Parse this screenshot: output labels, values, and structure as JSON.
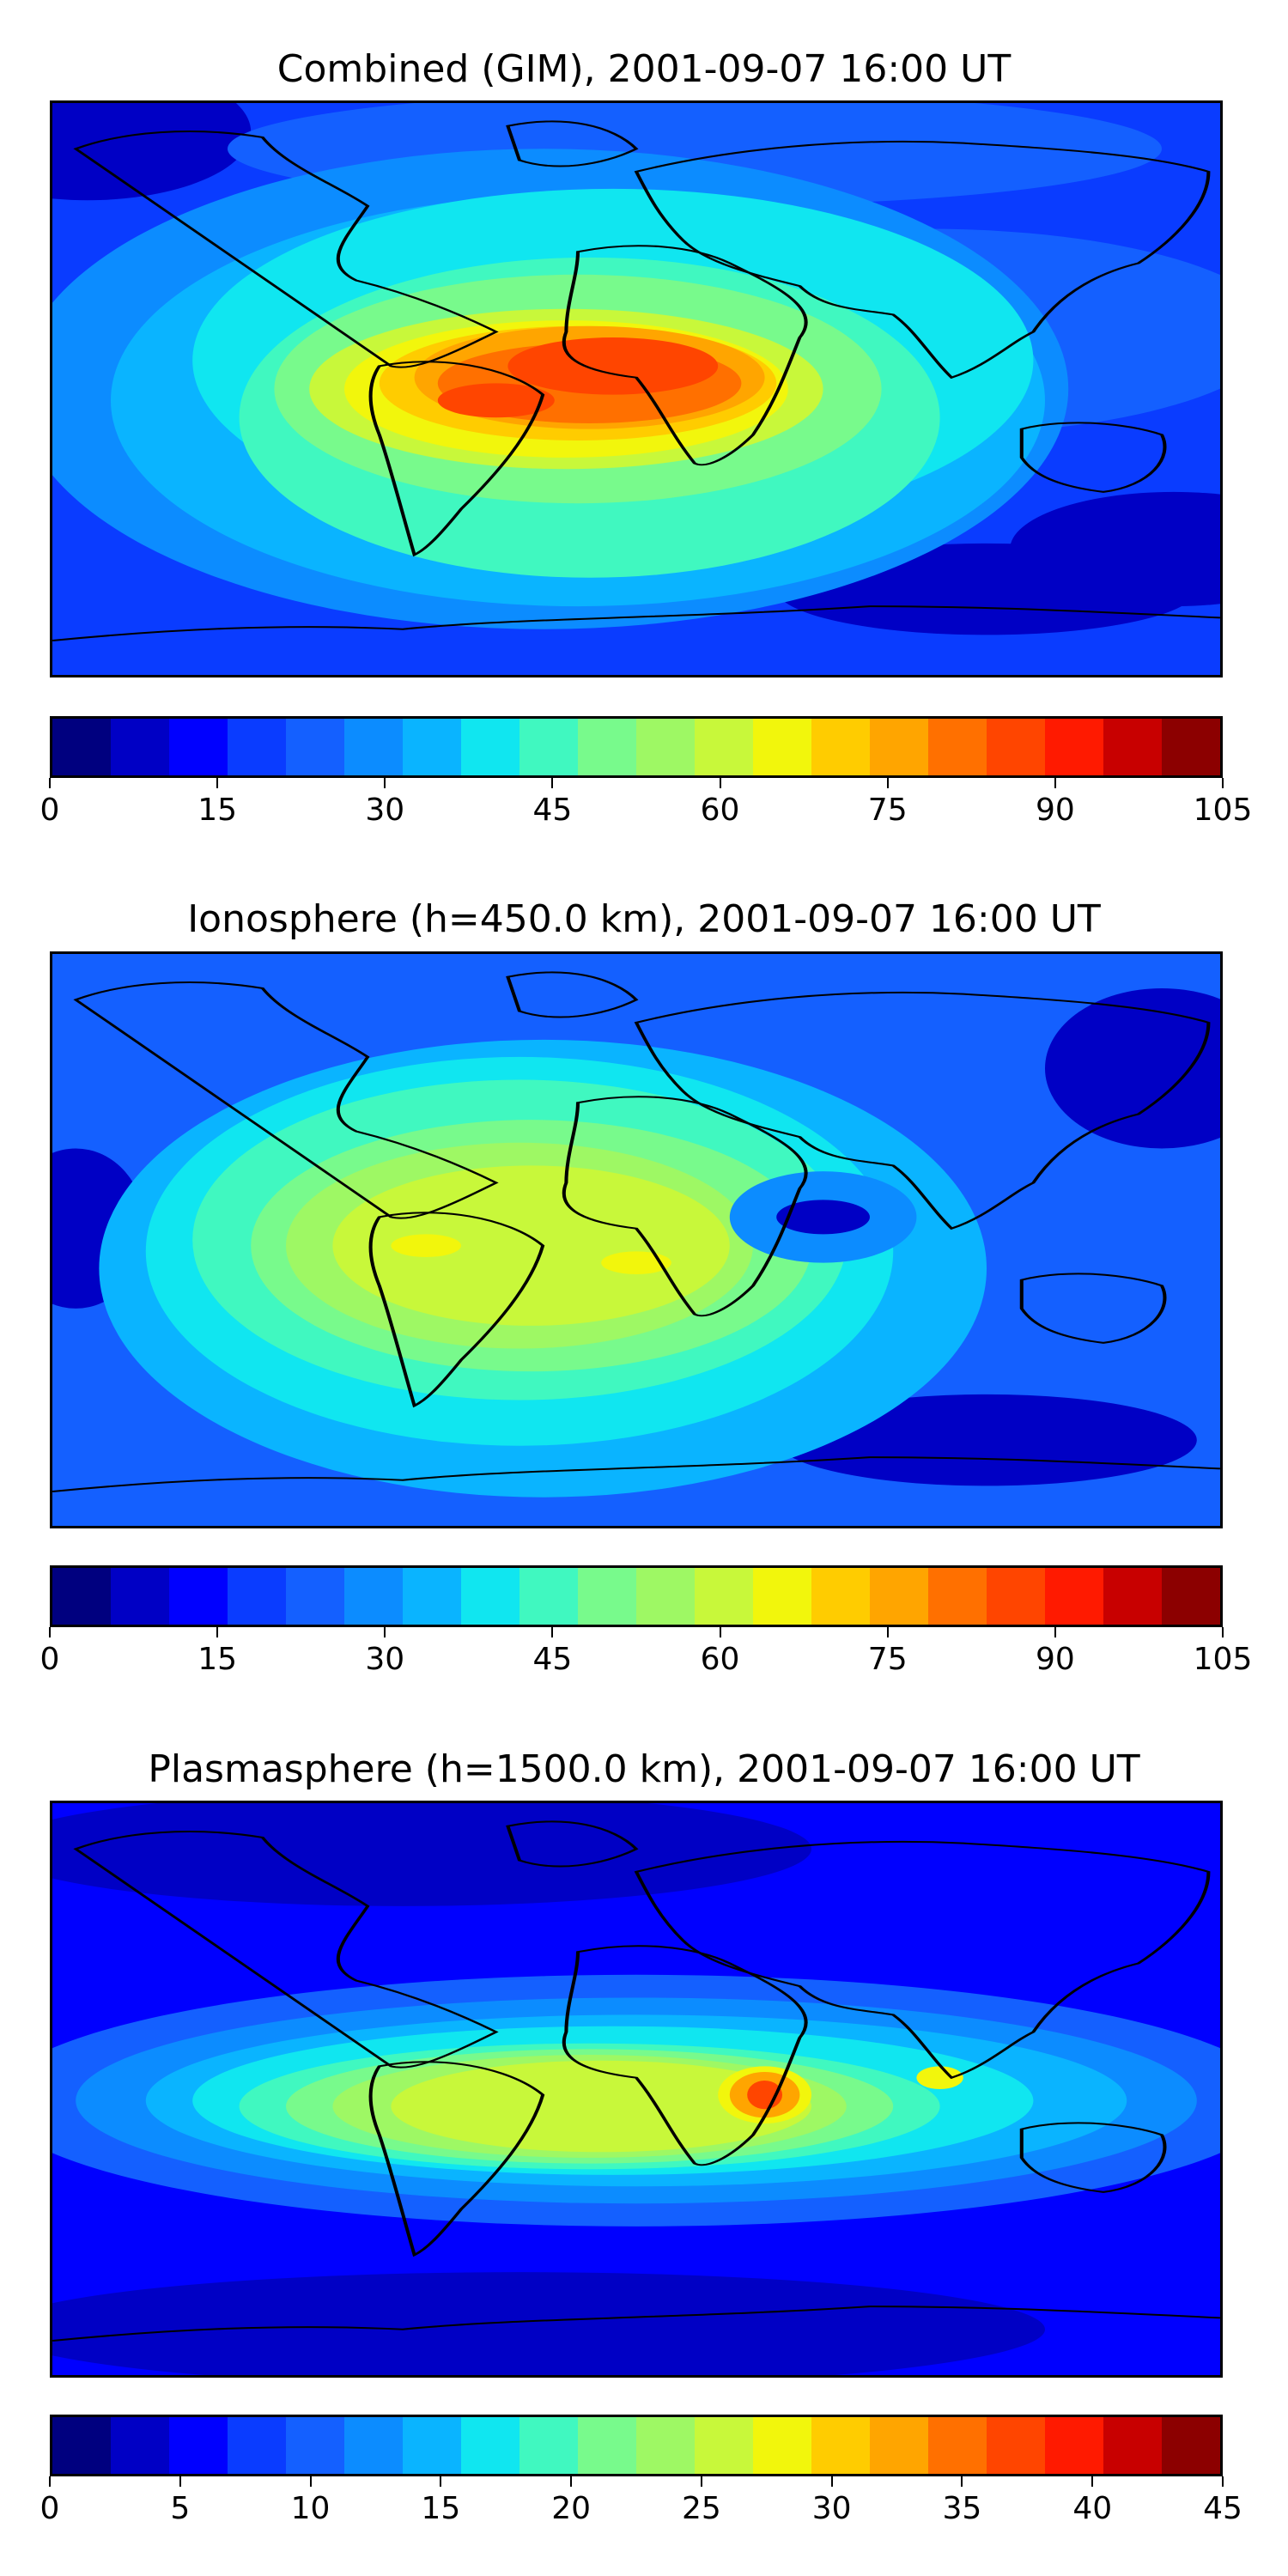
{
  "palette": [
    "#00007f",
    "#0000c5",
    "#0000ff",
    "#0a3cff",
    "#1460ff",
    "#0c8cff",
    "#0ab4ff",
    "#10e6f0",
    "#40f8c0",
    "#78fa8c",
    "#9ef864",
    "#c8f83a",
    "#f2f60c",
    "#ffcc00",
    "#ffa500",
    "#ff7000",
    "#ff4500",
    "#ff1a00",
    "#c80000",
    "#8c0000"
  ],
  "panels": [
    {
      "title": "Combined (GIM), 2001-09-07 16:00 UT",
      "colorbar": {
        "min": 0,
        "max": 105,
        "ticks": [
          "0",
          "15",
          "30",
          "45",
          "60",
          "75",
          "90",
          "105"
        ]
      },
      "map": {
        "background": "#0a3cff",
        "blobs": [
          {
            "c": "#0000c5",
            "x": 3,
            "y": 5,
            "rx": 14,
            "ry": 12
          },
          {
            "c": "#0000c5",
            "x": 96,
            "y": 78,
            "rx": 14,
            "ry": 10
          },
          {
            "c": "#0000c5",
            "x": 80,
            "y": 85,
            "rx": 18,
            "ry": 8
          },
          {
            "c": "#1460ff",
            "x": 55,
            "y": 8,
            "rx": 40,
            "ry": 10
          },
          {
            "c": "#1460ff",
            "x": 75,
            "y": 40,
            "rx": 30,
            "ry": 18
          },
          {
            "c": "#0c8cff",
            "x": 42,
            "y": 50,
            "rx": 45,
            "ry": 42
          },
          {
            "c": "#0ab4ff",
            "x": 45,
            "y": 52,
            "rx": 40,
            "ry": 36
          },
          {
            "c": "#10e6f0",
            "x": 48,
            "y": 45,
            "rx": 36,
            "ry": 30
          },
          {
            "c": "#40f8c0",
            "x": 46,
            "y": 55,
            "rx": 30,
            "ry": 28
          },
          {
            "c": "#78fa8c",
            "x": 45,
            "y": 50,
            "rx": 26,
            "ry": 20
          },
          {
            "c": "#c8f83a",
            "x": 44,
            "y": 50,
            "rx": 22,
            "ry": 14
          },
          {
            "c": "#f2f60c",
            "x": 44,
            "y": 50,
            "rx": 19,
            "ry": 12
          },
          {
            "c": "#ffcc00",
            "x": 45,
            "y": 49,
            "rx": 17,
            "ry": 10
          },
          {
            "c": "#ffa500",
            "x": 46,
            "y": 48,
            "rx": 15,
            "ry": 9
          },
          {
            "c": "#ff7000",
            "x": 46,
            "y": 49,
            "rx": 13,
            "ry": 7
          },
          {
            "c": "#ff4500",
            "x": 48,
            "y": 46,
            "rx": 9,
            "ry": 5
          },
          {
            "c": "#ff4500",
            "x": 38,
            "y": 52,
            "rx": 5,
            "ry": 3
          }
        ]
      }
    },
    {
      "title": "Ionosphere  (h=450.0 km), 2001-09-07 16:00 UT",
      "colorbar": {
        "min": 0,
        "max": 105,
        "ticks": [
          "0",
          "15",
          "30",
          "45",
          "60",
          "75",
          "90",
          "105"
        ]
      },
      "map": {
        "background": "#1460ff",
        "blobs": [
          {
            "c": "#0000c5",
            "x": 2,
            "y": 48,
            "rx": 6,
            "ry": 14
          },
          {
            "c": "#0000c5",
            "x": 80,
            "y": 85,
            "rx": 18,
            "ry": 8
          },
          {
            "c": "#0000c5",
            "x": 95,
            "y": 20,
            "rx": 10,
            "ry": 14
          },
          {
            "c": "#0ab4ff",
            "x": 42,
            "y": 55,
            "rx": 38,
            "ry": 40
          },
          {
            "c": "#10e6f0",
            "x": 40,
            "y": 52,
            "rx": 32,
            "ry": 34
          },
          {
            "c": "#40f8c0",
            "x": 40,
            "y": 50,
            "rx": 28,
            "ry": 28
          },
          {
            "c": "#78fa8c",
            "x": 41,
            "y": 51,
            "rx": 24,
            "ry": 22
          },
          {
            "c": "#9ef864",
            "x": 40,
            "y": 51,
            "rx": 20,
            "ry": 18
          },
          {
            "c": "#c8f83a",
            "x": 41,
            "y": 51,
            "rx": 17,
            "ry": 14
          },
          {
            "c": "#f2f60c",
            "x": 32,
            "y": 51,
            "rx": 3,
            "ry": 2
          },
          {
            "c": "#f2f60c",
            "x": 50,
            "y": 54,
            "rx": 3,
            "ry": 2
          },
          {
            "c": "#0c8cff",
            "x": 66,
            "y": 46,
            "rx": 8,
            "ry": 8
          },
          {
            "c": "#0000c5",
            "x": 66,
            "y": 46,
            "rx": 4,
            "ry": 3
          }
        ]
      }
    },
    {
      "title": "Plasmasphere (h=1500.0 km), 2001-09-07 16:00 UT",
      "colorbar": {
        "min": 0,
        "max": 45,
        "ticks": [
          "0",
          "5",
          "10",
          "15",
          "20",
          "25",
          "30",
          "35",
          "40",
          "45"
        ]
      },
      "map": {
        "background": "#0000ff",
        "blobs": [
          {
            "c": "#0000c5",
            "x": 30,
            "y": 8,
            "rx": 35,
            "ry": 10
          },
          {
            "c": "#0000c5",
            "x": 40,
            "y": 92,
            "rx": 45,
            "ry": 10
          },
          {
            "c": "#1460ff",
            "x": 50,
            "y": 52,
            "rx": 55,
            "ry": 22
          },
          {
            "c": "#0c8cff",
            "x": 50,
            "y": 52,
            "rx": 48,
            "ry": 18
          },
          {
            "c": "#0ab4ff",
            "x": 50,
            "y": 52,
            "rx": 42,
            "ry": 15
          },
          {
            "c": "#10e6f0",
            "x": 48,
            "y": 52,
            "rx": 36,
            "ry": 13
          },
          {
            "c": "#40f8c0",
            "x": 46,
            "y": 53,
            "rx": 30,
            "ry": 11
          },
          {
            "c": "#78fa8c",
            "x": 46,
            "y": 53,
            "rx": 26,
            "ry": 10
          },
          {
            "c": "#9ef864",
            "x": 46,
            "y": 53,
            "rx": 22,
            "ry": 9
          },
          {
            "c": "#c8f83a",
            "x": 47,
            "y": 53,
            "rx": 18,
            "ry": 8
          },
          {
            "c": "#f2f60c",
            "x": 61,
            "y": 51,
            "rx": 4,
            "ry": 5
          },
          {
            "c": "#ffa500",
            "x": 61,
            "y": 51,
            "rx": 3,
            "ry": 4
          },
          {
            "c": "#ff4500",
            "x": 61,
            "y": 51,
            "rx": 1.5,
            "ry": 2.5
          },
          {
            "c": "#f2f60c",
            "x": 76,
            "y": 48,
            "rx": 2,
            "ry": 2
          }
        ]
      }
    }
  ],
  "coast_paths": [
    "M2,8 C6,5 12,4 18,6 C20,11 24,14 27,18 C25,24 23,28 26,31 C30,33 34,36 38,40 C34,44 31,47 29,46 Z",
    "M28,46 C33,44 39,46 42,51 C41,58 38,65 35,71 C33,76 32,78 31,79 C30,72 29,64 28,58 C27,53 27,49 28,46 Z",
    "M39,4 C44,2 48,4 50,8 C47,11 43,12 40,10 Z",
    "M45,26 C50,24 55,25 58,28 C62,32 66,36 64,41 C63,46 62,52 60,58 C58,62 56,64 55,63 C53,58 52,53 50,48 C46,47 43,45 44,40 C44,35 45,30 45,26 Z",
    "M50,12 C58,8 68,6 78,7 C86,8 94,9 99,12 C99,18 96,24 93,28 C89,30 86,34 84,40 C82,42 80,46 77,48 C75,44 74,40 72,37 C69,36 66,36 64,32 C60,30 56,28 54,24 C52,20 51,16 50,12 Z",
    "M83,57 C87,55 92,56 95,58 C96,62 94,67 90,68 C86,67 84,65 83,62 Z",
    "M0,94 C10,92 20,91 30,92 C40,90 55,90 70,88 C80,88 90,89 100,90"
  ]
}
